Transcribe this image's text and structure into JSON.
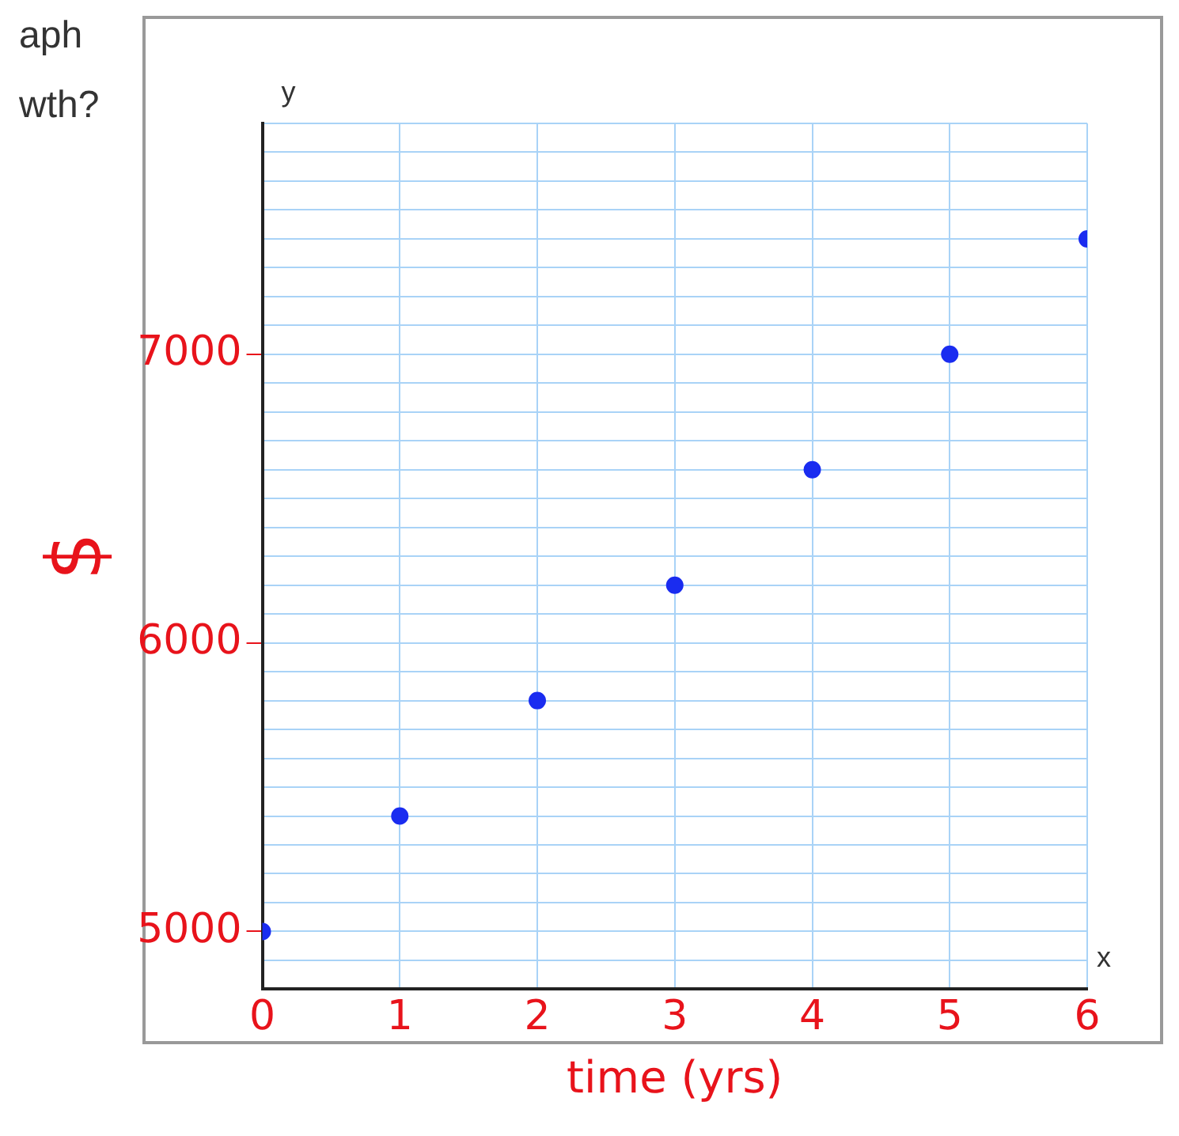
{
  "chart_data": {
    "type": "scatter",
    "xlabel": "time (yrs)",
    "ylabel": "$",
    "annotations": [
      "aph",
      "wth?",
      "y",
      "x"
    ],
    "x": [
      0,
      1,
      2,
      3,
      4,
      5,
      6
    ],
    "series": [
      {
        "color": "#1a2cf0",
        "values": [
          5000,
          5400,
          5800,
          6200,
          6600,
          7000,
          7400
        ]
      }
    ],
    "xlim": [
      0,
      6
    ],
    "xticks": [
      0,
      1,
      2,
      3,
      4,
      5,
      6
    ],
    "ylim": [
      4800,
      7800
    ],
    "yticks": [
      {
        "value": 4800,
        "label": null
      },
      {
        "value": 4900,
        "label": null
      },
      5000,
      {
        "value": 5100,
        "label": null
      },
      {
        "value": 5200,
        "label": null
      },
      {
        "value": 5300,
        "label": null
      },
      {
        "value": 5400,
        "label": null
      },
      {
        "value": 5500,
        "label": null
      },
      {
        "value": 5600,
        "label": null
      },
      {
        "value": 5700,
        "label": null
      },
      {
        "value": 5800,
        "label": null
      },
      {
        "value": 5900,
        "label": null
      },
      6000,
      {
        "value": 6100,
        "label": null
      },
      {
        "value": 6200,
        "label": null
      },
      {
        "value": 6300,
        "label": null
      },
      {
        "value": 6400,
        "label": null
      },
      {
        "value": 6500,
        "label": null
      },
      {
        "value": 6600,
        "label": null
      },
      {
        "value": 6700,
        "label": null
      },
      {
        "value": 6800,
        "label": null
      },
      {
        "value": 6900,
        "label": null
      },
      7000,
      {
        "value": 7100,
        "label": null
      },
      {
        "value": 7200,
        "label": null
      },
      {
        "value": 7300,
        "label": null
      },
      {
        "value": 7400,
        "label": null
      },
      {
        "value": 7500,
        "label": null
      },
      {
        "value": 7600,
        "label": null
      },
      {
        "value": 7700,
        "label": null
      },
      {
        "value": 7800,
        "label": null
      }
    ],
    "grid": true,
    "legend": false,
    "marker": "circle"
  }
}
